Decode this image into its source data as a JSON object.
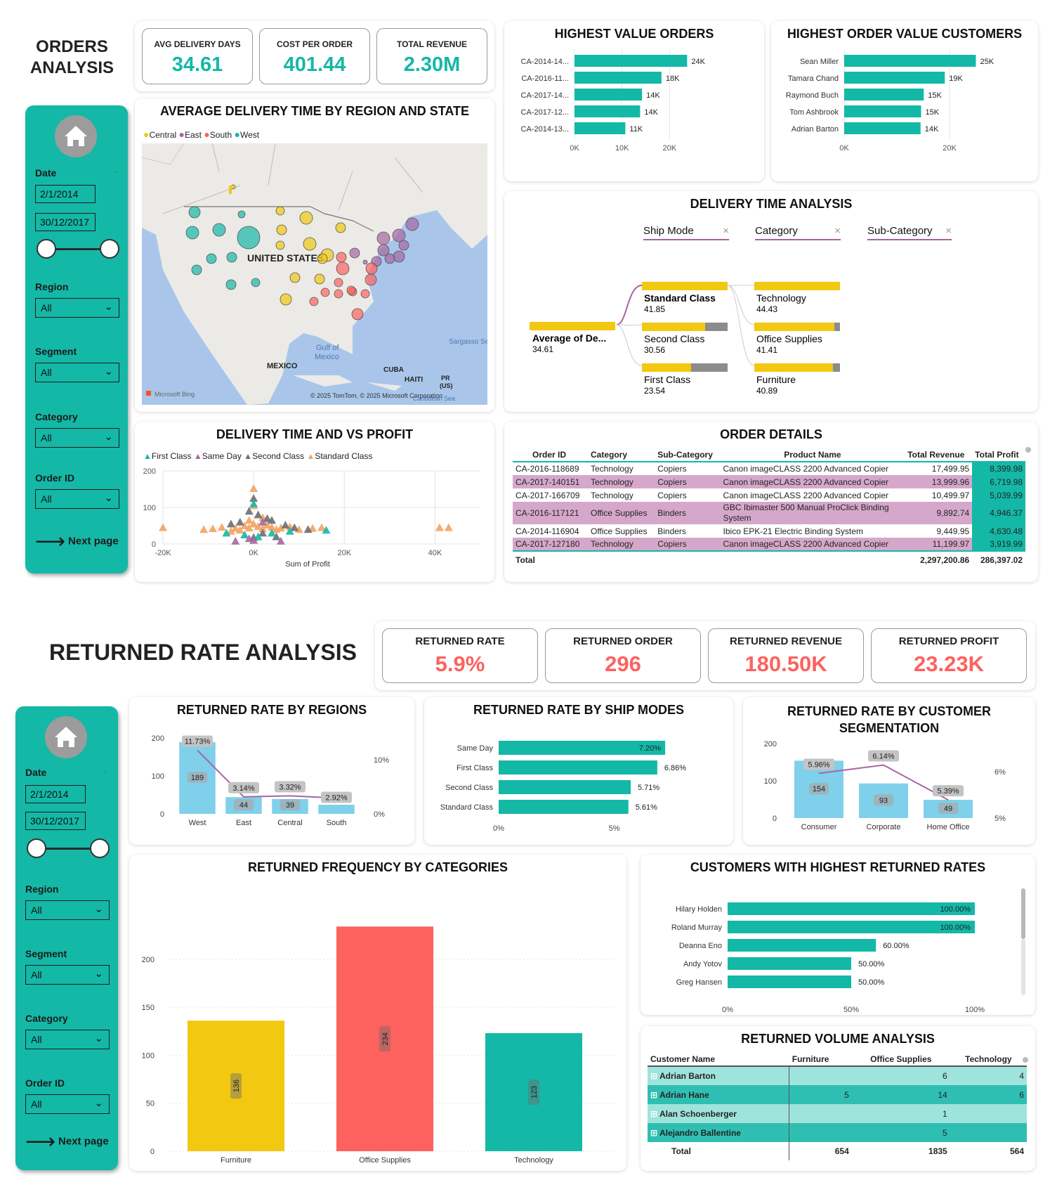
{
  "page1": {
    "title_line1": "ORDERS",
    "title_line2": "ANALYSIS",
    "kpis": [
      {
        "label": "AVG DELIVERY DAYS",
        "value": "34.61"
      },
      {
        "label": "COST PER ORDER",
        "value": "401.44"
      },
      {
        "label": "TOTAL REVENUE",
        "value": "2.30M"
      }
    ],
    "sidebar": {
      "date_label": "Date",
      "date_start": "2/1/2014",
      "date_end": "30/12/2017",
      "region_label": "Region",
      "region_value": "All",
      "segment_label": "Segment",
      "segment_value": "All",
      "category_label": "Category",
      "category_value": "All",
      "orderid_label": "Order ID",
      "orderid_value": "All",
      "next": "Next page"
    },
    "map": {
      "title": "AVERAGE DELIVERY TIME BY REGION AND STATE",
      "legend": [
        "Central",
        "East",
        "South",
        "West"
      ],
      "colors": {
        "Central": "#f2c811",
        "East": "#a766a3",
        "South": "#fd625e",
        "West": "#14b8a6"
      },
      "labels": {
        "country": "UNITED STATES",
        "mexico": "MEXICO",
        "gulf1": "Gulf of",
        "gulf2": "Mexico",
        "cuba": "CUBA",
        "haiti": "HAITI",
        "pr1": "PR",
        "pr2": "(US)",
        "sargasso": "Sargasso Se",
        "caribbean": "Caribbean Sea",
        "bing": "Microsoft Bing",
        "copyright": "© 2025 TomTom, © 2025 Microsoft Corporation"
      }
    },
    "highest_orders": {
      "title": "HIGHEST VALUE ORDERS",
      "categories": [
        "CA-2014-14...",
        "CA-2016-11...",
        "CA-2017-14...",
        "CA-2017-12...",
        "CA-2014-13..."
      ],
      "values": [
        23.7,
        18.3,
        14.2,
        13.8,
        10.7
      ],
      "labels": [
        "24K",
        "18K",
        "14K",
        "14K",
        "11K"
      ],
      "ticks": [
        "0K",
        "10K",
        "20K"
      ],
      "xmax": 30
    },
    "highest_customers": {
      "title": "HIGHEST ORDER VALUE CUSTOMERS",
      "categories": [
        "Sean Miller",
        "Tamara Chand",
        "Raymond Buch",
        "Tom Ashbrook",
        "Adrian Barton"
      ],
      "values": [
        25.0,
        19.1,
        15.1,
        14.6,
        14.5
      ],
      "labels": [
        "25K",
        "19K",
        "15K",
        "15K",
        "14K"
      ],
      "ticks": [
        "0K",
        "20K"
      ],
      "xmax": 30
    },
    "decomp": {
      "title": "DELIVERY TIME ANALYSIS",
      "filters": [
        "Ship Mode",
        "Category",
        "Sub-Category"
      ],
      "root_label": "Average of De...",
      "root_value": "34.61",
      "ship": [
        {
          "name": "Standard Class",
          "value": "41.85"
        },
        {
          "name": "Second Class",
          "value": "30.56"
        },
        {
          "name": "First Class",
          "value": "23.54"
        }
      ],
      "cat": [
        {
          "name": "Technology",
          "value": "44.43"
        },
        {
          "name": "Office Supplies",
          "value": "41.41"
        },
        {
          "name": "Furniture",
          "value": "40.89"
        }
      ]
    },
    "scatter": {
      "title": "DELIVERY TIME AND VS PROFIT",
      "legend": [
        "First Class",
        "Same Day",
        "Second Class",
        "Standard Class"
      ],
      "colors": {
        "First Class": "#14b8a6",
        "Same Day": "#a766a3",
        "Second Class": "#6b6e72",
        "Standard Class": "#f4a261"
      },
      "xlabel": "Sum of Profit",
      "xticks": [
        "-20K",
        "0K",
        "20K",
        "40K"
      ],
      "yticks": [
        "0",
        "100",
        "200"
      ]
    },
    "order_details": {
      "title": "ORDER DETAILS",
      "columns": [
        "Order ID",
        "Category",
        "Sub-Category",
        "Product Name",
        "Total Revenue",
        "Total Profit"
      ],
      "rows": [
        [
          "CA-2016-118689",
          "Technology",
          "Copiers",
          "Canon imageCLASS 2200 Advanced Copier",
          "17,499.95",
          "8,399.98"
        ],
        [
          "CA-2017-140151",
          "Technology",
          "Copiers",
          "Canon imageCLASS 2200 Advanced Copier",
          "13,999.96",
          "6,719.98"
        ],
        [
          "CA-2017-166709",
          "Technology",
          "Copiers",
          "Canon imageCLASS 2200 Advanced Copier",
          "10,499.97",
          "5,039.99"
        ],
        [
          "CA-2016-117121",
          "Office Supplies",
          "Binders",
          "GBC Ibimaster 500 Manual ProClick Binding",
          "9,892.74",
          "4,946.37"
        ],
        [
          "CA-2014-116904",
          "Office Supplies",
          "Binders",
          "Ibico EPK-21 Electric Binding System",
          "9,449.95",
          "4,630.48"
        ],
        [
          "CA-2017-127180",
          "Technology",
          "Copiers",
          "Canon imageCLASS 2200 Advanced Copier",
          "11,199.97",
          "3,919.99"
        ]
      ],
      "row4_wrap": "System",
      "total_label": "Total",
      "total_revenue": "2,297,200.86",
      "total_profit": "286,397.02"
    }
  },
  "page2": {
    "title": "RETURNED RATE ANALYSIS",
    "kpis": [
      {
        "label": "RETURNED RATE",
        "value": "5.9%"
      },
      {
        "label": "RETURNED ORDER",
        "value": "296"
      },
      {
        "label": "RETURNED REVENUE",
        "value": "180.50K"
      },
      {
        "label": "RETURNED PROFIT",
        "value": "23.23K"
      }
    ],
    "sidebar": {
      "date_label": "Date",
      "date_start": "2/1/2014",
      "date_end": "30/12/2017",
      "region_label": "Region",
      "region_value": "All",
      "segment_label": "Segment",
      "segment_value": "All",
      "category_label": "Category",
      "category_value": "All",
      "orderid_label": "Order ID",
      "orderid_value": "All",
      "next": "Next page"
    },
    "by_region": {
      "title": "RETURNED RATE BY REGIONS",
      "categories": [
        "West",
        "East",
        "Central",
        "South"
      ],
      "counts": [
        189,
        44,
        39,
        24
      ],
      "rates": [
        11.73,
        3.14,
        3.32,
        2.92
      ],
      "count_labels": [
        "189",
        "44",
        "39",
        ""
      ],
      "rate_labels": [
        "11.73%",
        "3.14%",
        "3.32%",
        "2.92%"
      ],
      "yticks": [
        "0",
        "100",
        "200"
      ],
      "rticks": [
        "0%",
        "10%"
      ]
    },
    "by_ship": {
      "title": "RETURNED RATE BY SHIP MODES",
      "categories": [
        "Same Day",
        "First Class",
        "Second Class",
        "Standard Class"
      ],
      "values": [
        7.2,
        6.86,
        5.71,
        5.61
      ],
      "labels": [
        "7.20%",
        "6.86%",
        "5.71%",
        "5.61%"
      ],
      "ticks": [
        "0%",
        "5%"
      ]
    },
    "by_segment": {
      "title_line1": "RETURNED RATE BY CUSTOMER",
      "title_line2": "SEGMENTATION",
      "categories": [
        "Consumer",
        "Corporate",
        "Home Office"
      ],
      "counts": [
        154,
        93,
        49
      ],
      "rates": [
        5.96,
        6.14,
        5.39
      ],
      "rate_labels": [
        "5.96%",
        "6.14%",
        "5.39%"
      ],
      "yticks": [
        "0",
        "100",
        "200"
      ],
      "rticks": [
        "5%",
        "6%"
      ]
    },
    "by_category": {
      "title": "RETURNED FREQUENCY BY CATEGORIES",
      "categories": [
        "Furniture",
        "Office Supplies",
        "Technology"
      ],
      "values": [
        136,
        234,
        123
      ],
      "colors": [
        "#f2c811",
        "#fd625e",
        "#14b8a6"
      ],
      "yticks": [
        "0",
        "50",
        "100",
        "150",
        "200"
      ]
    },
    "customers": {
      "title": "CUSTOMERS WITH HIGHEST RETURNED RATES",
      "names": [
        "Hilary Holden",
        "Roland Murray",
        "Deanna Eno",
        "Andy Yotov",
        "Greg Hansen"
      ],
      "values": [
        100,
        100,
        60,
        50,
        50
      ],
      "labels": [
        "100.00%",
        "100.00%",
        "60.00%",
        "50.00%",
        "50.00%"
      ],
      "ticks": [
        "0%",
        "50%",
        "100%"
      ]
    },
    "volume": {
      "title": "RETURNED VOLUME ANALYSIS",
      "columns": [
        "Customer Name",
        "Furniture",
        "Office Supplies",
        "Technology"
      ],
      "rows": [
        [
          "Adrian Barton",
          "",
          "6",
          "4"
        ],
        [
          "Adrian Hane",
          "5",
          "14",
          "6"
        ],
        [
          "Alan Schoenberger",
          "",
          "1",
          ""
        ],
        [
          "Alejandro Ballentine",
          "",
          "5",
          ""
        ]
      ],
      "total_label": "Total",
      "totals": [
        "654",
        "1835",
        "564"
      ]
    }
  }
}
